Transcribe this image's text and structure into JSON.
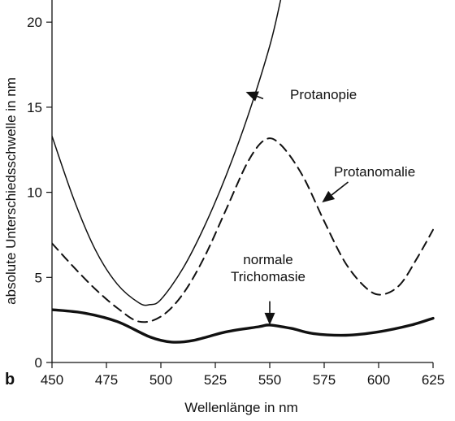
{
  "chart_data": {
    "type": "line",
    "title": "",
    "panel_label": "b",
    "xlabel": "Wellenlänge in nm",
    "ylabel": "absolute Unterschiedsschwelle in nm",
    "xlim": [
      450,
      625
    ],
    "ylim": [
      0,
      21.3
    ],
    "xticks": [
      450,
      475,
      500,
      525,
      550,
      575,
      600,
      625
    ],
    "yticks": [
      0,
      5,
      10,
      15,
      20
    ],
    "grid": false,
    "legend": "none",
    "series": [
      {
        "id": "protanopie",
        "style": "solid-thin",
        "x": [
          450,
          460,
          470,
          480,
          490,
          495,
          500,
          510,
          520,
          530,
          540,
          550,
          555
        ],
        "y": [
          13.3,
          9.6,
          6.6,
          4.6,
          3.5,
          3.4,
          3.7,
          5.5,
          8.0,
          11.0,
          14.5,
          18.6,
          21.3
        ]
      },
      {
        "id": "protanomalie",
        "style": "dashed",
        "x": [
          450,
          460,
          470,
          480,
          490,
          500,
          510,
          520,
          530,
          540,
          548,
          555,
          565,
          575,
          585,
          595,
          602,
          610,
          618,
          625
        ],
        "y": [
          7.0,
          5.6,
          4.3,
          3.2,
          2.4,
          2.7,
          4.0,
          6.2,
          9.0,
          11.8,
          13.1,
          12.8,
          11.0,
          8.3,
          5.8,
          4.3,
          4.0,
          4.6,
          6.2,
          7.8
        ]
      },
      {
        "id": "normal",
        "style": "solid-thick",
        "x": [
          450,
          465,
          480,
          495,
          505,
          515,
          530,
          545,
          550,
          560,
          570,
          585,
          600,
          615,
          625
        ],
        "y": [
          3.1,
          2.9,
          2.4,
          1.5,
          1.2,
          1.3,
          1.8,
          2.1,
          2.2,
          2.0,
          1.7,
          1.6,
          1.8,
          2.2,
          2.6
        ]
      }
    ],
    "annotations": [
      {
        "id": "protanopie",
        "text": "Protanopie",
        "arrow_from": [
          547,
          15.5
        ],
        "arrow_to": [
          539,
          15.9
        ]
      },
      {
        "id": "protanomalie",
        "text": "Protanomalie",
        "arrow_from": [
          586,
          10.6
        ],
        "arrow_to": [
          574,
          9.4
        ]
      },
      {
        "id": "normal",
        "lines": [
          "normale",
          "Trichomasie"
        ],
        "arrow_from": [
          550,
          3.6
        ],
        "arrow_to": [
          550,
          2.2
        ]
      }
    ]
  }
}
